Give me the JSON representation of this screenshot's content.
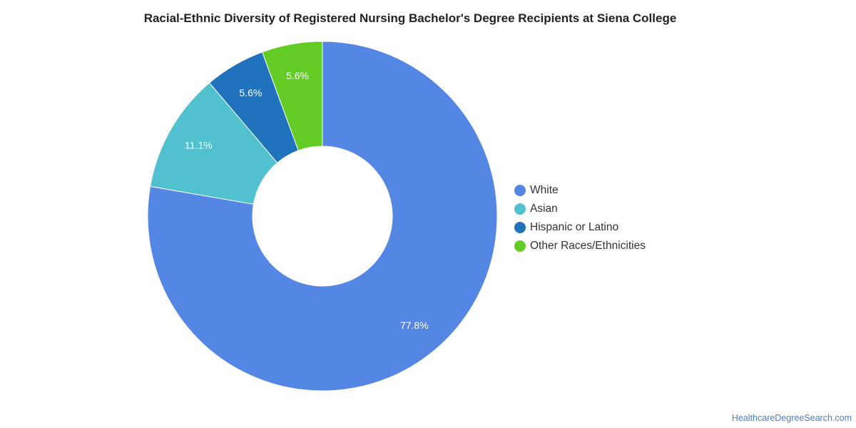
{
  "chart_data": {
    "type": "pie",
    "title": "Racial-Ethnic Diversity of Registered Nursing Bachelor's Degree Recipients at Siena College",
    "categories": [
      "White",
      "Asian",
      "Hispanic or Latino",
      "Other Races/Ethnicities"
    ],
    "values": [
      77.8,
      11.1,
      5.6,
      5.6
    ],
    "data_labels": [
      "77.8%",
      "11.1%",
      "5.6%",
      "5.6%"
    ],
    "colors": [
      "#5486e3",
      "#52c1cf",
      "#1f72bb",
      "#62cc25"
    ],
    "donut": true,
    "legend_position": "right"
  },
  "footer": {
    "source": "HealthcareDegreeSearch.com"
  }
}
